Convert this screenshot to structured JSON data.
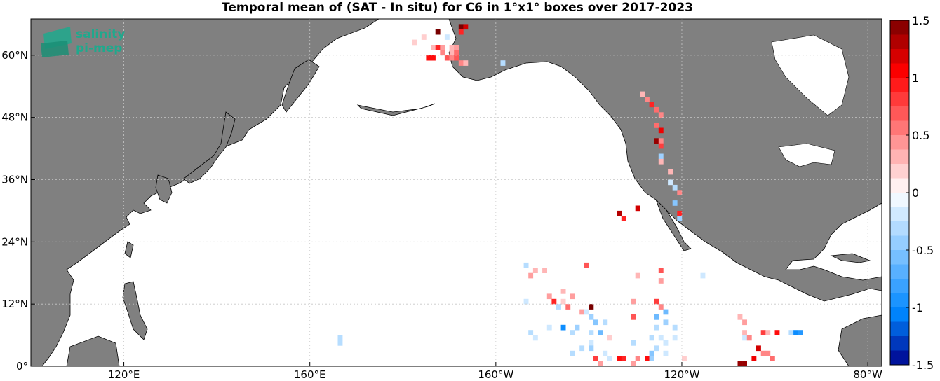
{
  "chart_data": {
    "type": "heatmap",
    "title": "Temporal mean of (SAT - In situ) for C6 in 1°x1° boxes over 2017-2023",
    "lon_range": [
      100,
      283
    ],
    "lat_range": [
      0,
      67
    ],
    "x_ticks": [
      {
        "value": 120,
        "label": "120°E"
      },
      {
        "value": 160,
        "label": "160°E"
      },
      {
        "value": 200,
        "label": "160°W"
      },
      {
        "value": 240,
        "label": "120°W"
      },
      {
        "value": 280,
        "label": "80°W"
      }
    ],
    "y_ticks": [
      {
        "value": 0,
        "label": "0°"
      },
      {
        "value": 12,
        "label": "12°N"
      },
      {
        "value": 24,
        "label": "24°N"
      },
      {
        "value": 36,
        "label": "36°N"
      },
      {
        "value": 48,
        "label": "48°N"
      },
      {
        "value": 60,
        "label": "60°N"
      }
    ],
    "grid": true,
    "colorbar": {
      "min": -1.5,
      "max": 1.5,
      "levels": 24,
      "ticks": [
        "1.5",
        "1",
        "0.5",
        "0",
        "-0.5",
        "-1",
        "-1.5"
      ],
      "tick_values": [
        1.5,
        1,
        0.5,
        0,
        -0.5,
        -1,
        -1.5
      ]
    },
    "cells": [
      [
        192,
        65,
        1.5
      ],
      [
        193,
        65,
        1.2
      ],
      [
        187,
        64,
        1.5
      ],
      [
        192,
        64,
        0.9
      ],
      [
        186,
        61,
        0.3
      ],
      [
        187,
        61,
        0.9
      ],
      [
        188,
        61,
        0.4
      ],
      [
        190,
        61,
        0.3
      ],
      [
        191,
        61,
        0.4
      ],
      [
        188,
        60,
        0.5
      ],
      [
        190,
        60,
        0.3
      ],
      [
        191,
        60,
        0.6
      ],
      [
        185,
        59,
        1.0
      ],
      [
        186,
        59,
        1.0
      ],
      [
        189,
        59,
        0.7
      ],
      [
        190,
        59,
        0.5
      ],
      [
        191,
        59,
        0.7
      ],
      [
        192,
        58,
        0.5
      ],
      [
        193,
        58,
        0.3
      ],
      [
        201,
        58,
        -0.3
      ],
      [
        182,
        62,
        0.2
      ],
      [
        184,
        63,
        0.2
      ],
      [
        189,
        63,
        -0.2
      ],
      [
        231,
        52,
        0.3
      ],
      [
        232,
        51,
        0.5
      ],
      [
        233,
        50,
        0.9
      ],
      [
        234,
        49,
        0.6
      ],
      [
        235,
        48,
        0.5
      ],
      [
        234,
        46,
        0.6
      ],
      [
        235,
        45,
        1.1
      ],
      [
        234,
        43,
        1.4
      ],
      [
        235,
        43,
        0.5
      ],
      [
        235,
        42,
        0.8
      ],
      [
        235,
        40,
        -0.4
      ],
      [
        235,
        39,
        0.3
      ],
      [
        237,
        37,
        0.3
      ],
      [
        237,
        35,
        -0.2
      ],
      [
        238,
        34,
        -0.3
      ],
      [
        239,
        33,
        0.5
      ],
      [
        238,
        31,
        -0.5
      ],
      [
        239,
        29,
        0.9
      ],
      [
        239,
        28,
        -0.4
      ],
      [
        226,
        29,
        1.3
      ],
      [
        230,
        30,
        1.2
      ],
      [
        227,
        28,
        0.9
      ],
      [
        206,
        19,
        -0.3
      ],
      [
        208,
        18,
        0.3
      ],
      [
        207,
        17,
        0.4
      ],
      [
        210,
        18,
        0.3
      ],
      [
        219,
        19,
        0.7
      ],
      [
        230,
        17,
        0.3
      ],
      [
        235,
        18,
        0.7
      ],
      [
        244,
        17,
        -0.2
      ],
      [
        235,
        16,
        0.4
      ],
      [
        211,
        13,
        0.4
      ],
      [
        212,
        12,
        0.9
      ],
      [
        214,
        12,
        0.2
      ],
      [
        216,
        13,
        0.4
      ],
      [
        214,
        14,
        0.3
      ],
      [
        215,
        11,
        0.6
      ],
      [
        213,
        11,
        -0.3
      ],
      [
        206,
        12,
        -0.2
      ],
      [
        218,
        10,
        0.4
      ],
      [
        220,
        11,
        1.5
      ],
      [
        219,
        10,
        -0.2
      ],
      [
        229,
        12,
        0.4
      ],
      [
        234,
        12,
        0.8
      ],
      [
        235,
        11,
        0.5
      ],
      [
        236,
        10,
        -0.6
      ],
      [
        220,
        9,
        -0.4
      ],
      [
        221,
        8,
        -0.5
      ],
      [
        214,
        7,
        -1.0
      ],
      [
        211,
        7,
        -0.2
      ],
      [
        217,
        7,
        -0.4
      ],
      [
        223,
        8,
        -0.3
      ],
      [
        229,
        9,
        0.7
      ],
      [
        234,
        9,
        -0.6
      ],
      [
        236,
        8,
        -0.4
      ],
      [
        238,
        7,
        -0.3
      ],
      [
        234,
        7,
        -0.3
      ],
      [
        207,
        6,
        -0.3
      ],
      [
        216,
        6,
        -0.3
      ],
      [
        220,
        6,
        -0.3
      ],
      [
        222,
        6,
        -0.6
      ],
      [
        224,
        5,
        0.2
      ],
      [
        233,
        5,
        -0.3
      ],
      [
        235,
        5,
        -0.2
      ],
      [
        208,
        5,
        -0.2
      ],
      [
        220,
        4,
        -0.2
      ],
      [
        229,
        4,
        -0.3
      ],
      [
        236,
        4,
        -0.2
      ],
      [
        238,
        5,
        -0.2
      ],
      [
        218,
        3,
        -0.3
      ],
      [
        220,
        3,
        -0.4
      ],
      [
        223,
        2,
        -0.2
      ],
      [
        234,
        3,
        -0.3
      ],
      [
        236,
        2,
        -0.2
      ],
      [
        233,
        2,
        -0.5
      ],
      [
        226,
        1,
        1.0
      ],
      [
        227,
        1,
        0.9
      ],
      [
        232,
        1,
        1.0
      ],
      [
        233,
        1,
        -0.4
      ],
      [
        240,
        1,
        0.2
      ],
      [
        221,
        1,
        0.8
      ],
      [
        224,
        1,
        -0.2
      ],
      [
        230,
        1,
        0.5
      ],
      [
        216,
        2,
        -0.3
      ],
      [
        222,
        0,
        0.4
      ],
      [
        229,
        0,
        0.4
      ],
      [
        166,
        5,
        -0.3
      ],
      [
        166,
        4,
        -0.3
      ],
      [
        252,
        9,
        0.3
      ],
      [
        253,
        8,
        0.4
      ],
      [
        253,
        6,
        0.3
      ],
      [
        253,
        5,
        -0.2
      ],
      [
        254,
        5,
        0.5
      ],
      [
        257,
        6,
        0.8
      ],
      [
        258,
        6,
        0.3
      ],
      [
        260,
        6,
        1.0
      ],
      [
        263,
        6,
        -0.3
      ],
      [
        264,
        6,
        -1.0
      ],
      [
        265,
        6,
        -0.9
      ],
      [
        256,
        3,
        1.2
      ],
      [
        257,
        2,
        0.5
      ],
      [
        258,
        2,
        0.5
      ],
      [
        255,
        1,
        1.1
      ],
      [
        252,
        0,
        1.4
      ],
      [
        253,
        0,
        1.4
      ],
      [
        259,
        1,
        0.6
      ]
    ]
  }
}
